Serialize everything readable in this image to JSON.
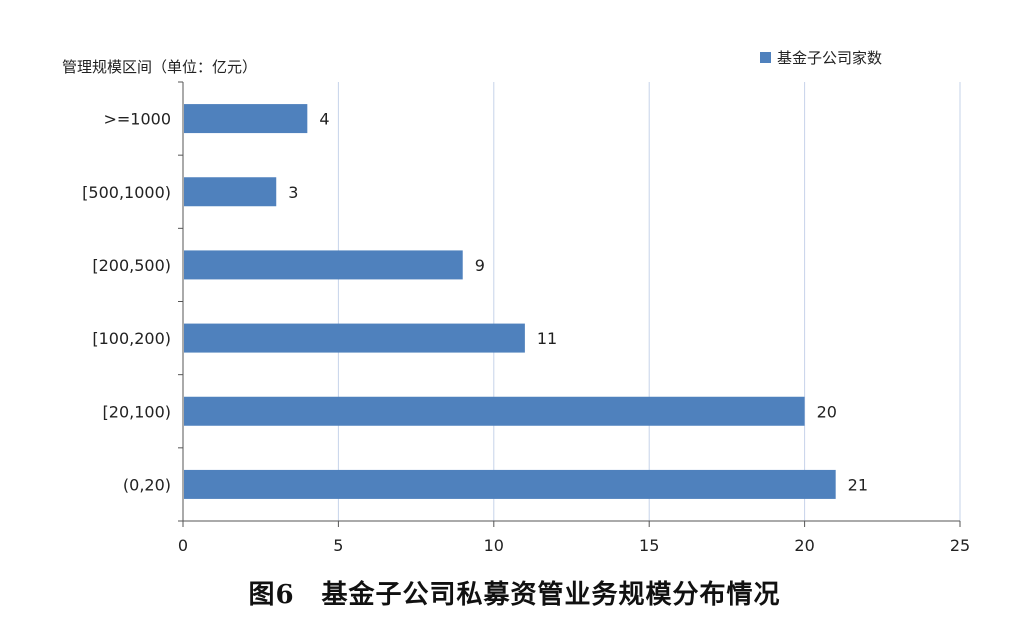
{
  "chart_data": {
    "type": "bar",
    "orientation": "horizontal",
    "categories": [
      ">=1000",
      "[500,1000)",
      "[200,500)",
      "[100,200)",
      "[20,100)",
      "(0,20)"
    ],
    "series": [
      {
        "name": "基金子公司家数",
        "values": [
          4,
          3,
          9,
          11,
          20,
          21
        ],
        "color": "#4f81bd"
      }
    ],
    "ylabel": "管理规模区间（单位：亿元）",
    "xlabel": "",
    "xlim": [
      0,
      25
    ],
    "xticks": [
      0,
      5,
      10,
      15,
      20,
      25
    ],
    "grid": "vertical",
    "legend_position": "top-right",
    "caption": "图6　基金子公司私募资管业务规模分布情况"
  }
}
